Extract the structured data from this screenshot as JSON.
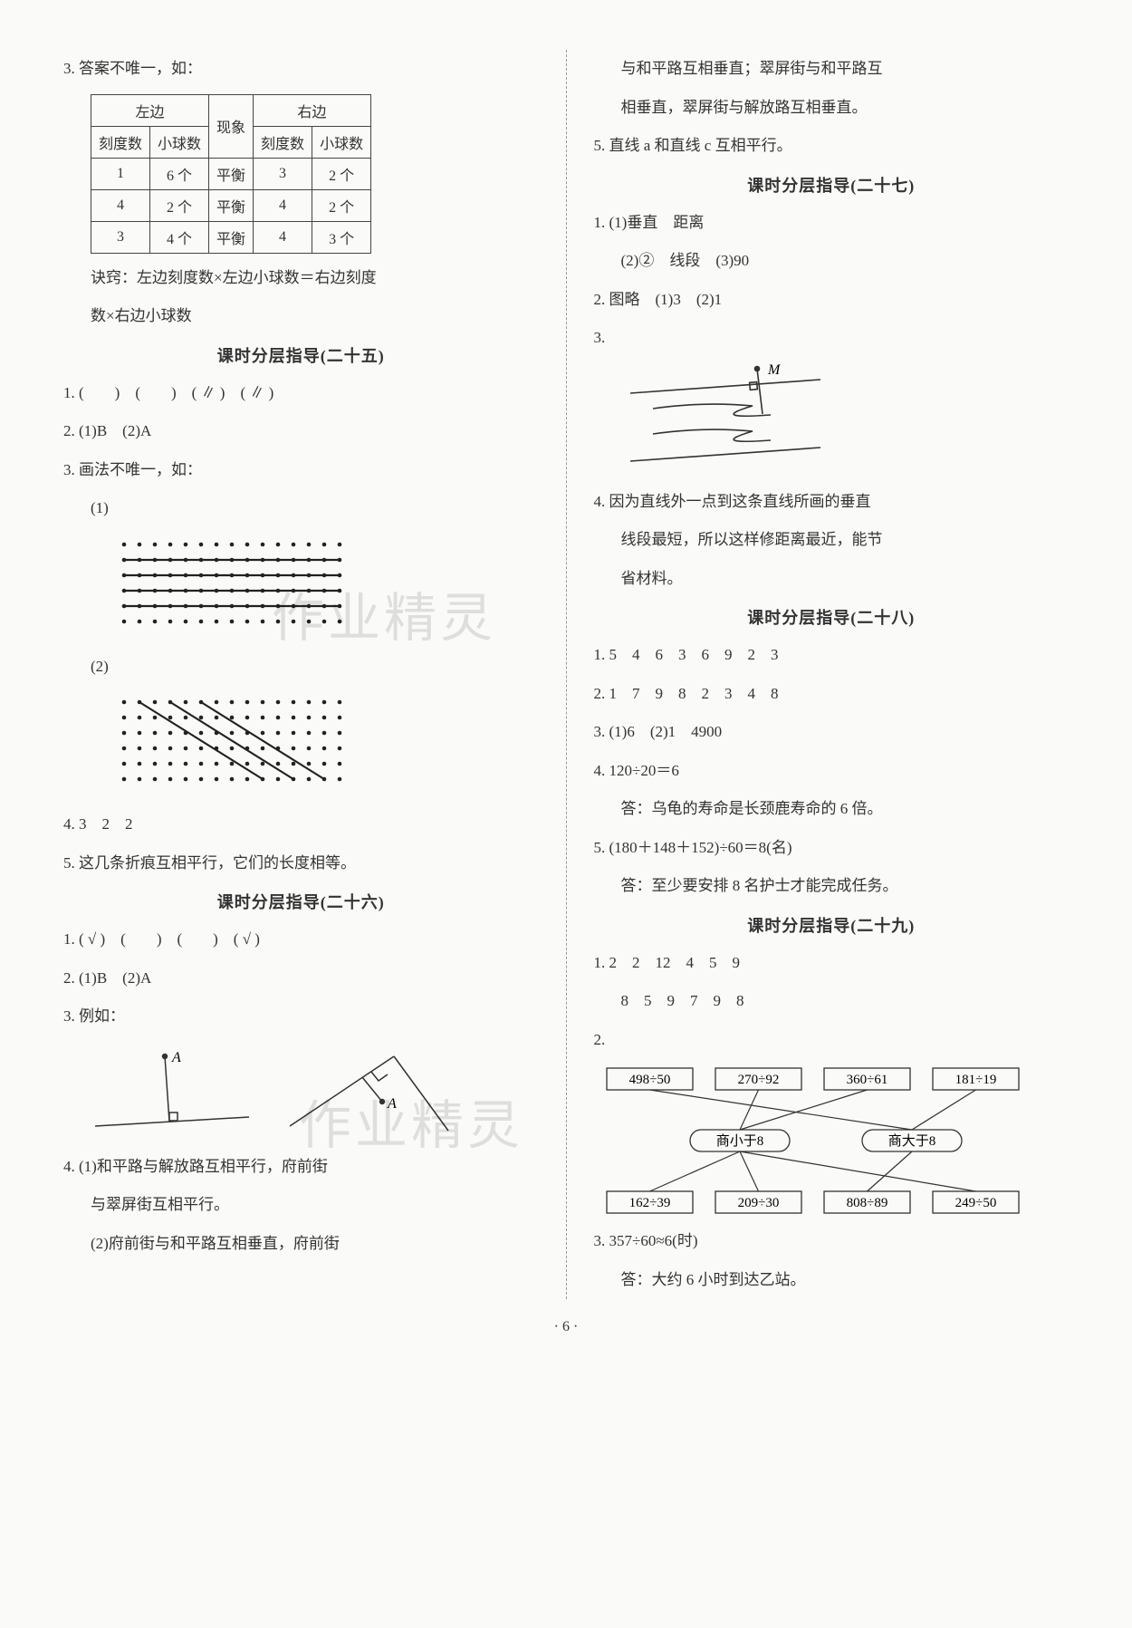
{
  "watermark": "作业精灵",
  "page_num": "6",
  "left": {
    "q3_intro": "3. 答案不唯一，如：",
    "table": {
      "head_left": "左边",
      "head_mid": "现象",
      "head_right": "右边",
      "sub_left1": "刻度数",
      "sub_left2": "小球数",
      "sub_right1": "刻度数",
      "sub_right2": "小球数",
      "rows": [
        {
          "a": "1",
          "b": "6 个",
          "c": "平衡",
          "d": "3",
          "e": "2 个"
        },
        {
          "a": "4",
          "b": "2 个",
          "c": "平衡",
          "d": "4",
          "e": "2 个"
        },
        {
          "a": "3",
          "b": "4 个",
          "c": "平衡",
          "d": "4",
          "e": "3 个"
        }
      ]
    },
    "q3_note1": "诀窍：左边刻度数×左边小球数＝右边刻度",
    "q3_note2": "数×右边小球数",
    "h25": "课时分层指导(二十五)",
    "s25_1": "1. (　　)　(　　)　( ∥ )　( ∥ )",
    "s25_2": "2. (1)B　(2)A",
    "s25_3": "3. 画法不唯一，如：",
    "s25_3_1": "(1)",
    "s25_3_2": "(2)",
    "s25_4": "4. 3　2　2",
    "s25_5": "5. 这几条折痕互相平行，它们的长度相等。",
    "h26": "课时分层指导(二十六)",
    "s26_1": "1. ( √ )　(　　)　(　　)　( √ )",
    "s26_2": "2. (1)B　(2)A",
    "s26_3": "3. 例如：",
    "s26_4a": "4. (1)和平路与解放路互相平行，府前街",
    "s26_4b": "与翠屏街互相平行。",
    "s26_4c": "(2)府前街与和平路互相垂直，府前街",
    "dots": {
      "cols": 15,
      "rows": 6,
      "step": 17,
      "dot_color": "#222",
      "line_color": "#222",
      "dot_r": 2.3
    }
  },
  "right": {
    "cont1": "与和平路互相垂直；翠屏街与和平路互",
    "cont2": "相垂直，翠屏街与解放路互相垂直。",
    "s26_5": "5. 直线 a 和直线 c 互相平行。",
    "h27": "课时分层指导(二十七)",
    "s27_1a": "1. (1)垂直　距离",
    "s27_1b": "(2)②　线段　(3)90",
    "s27_2": "2. 图略　(1)3　(2)1",
    "s27_3": "3.",
    "s27_3_label": "M",
    "s27_4a": "4. 因为直线外一点到这条直线所画的垂直",
    "s27_4b": "线段最短，所以这样修距离最近，能节",
    "s27_4c": "省材料。",
    "h28": "课时分层指导(二十八)",
    "s28_1": "1. 5　4　6　3　6　9　2　3",
    "s28_2": "2. 1　7　9　8　2　3　4　8",
    "s28_3": "3. (1)6　(2)1　4900",
    "s28_4a": "4. 120÷20＝6",
    "s28_4b": "答：乌龟的寿命是长颈鹿寿命的 6 倍。",
    "s28_5a": "5. (180＋148＋152)÷60＝8(名)",
    "s28_5b": "答：至少要安排 8 名护士才能完成任务。",
    "h29": "课时分层指导(二十九)",
    "s29_1a": "1. 2　2　12　4　5　9",
    "s29_1b": "8　5　9　7　9　8",
    "s29_2": "2.",
    "diagram29": {
      "top": [
        "498÷50",
        "270÷92",
        "360÷61",
        "181÷19"
      ],
      "mid": [
        "商小于8",
        "商大于8"
      ],
      "bot": [
        "162÷39",
        "209÷30",
        "808÷89",
        "249÷50"
      ],
      "box_stroke": "#333",
      "line_stroke": "#333",
      "font_size": 15,
      "map_top": [
        [
          0,
          1
        ],
        [
          1,
          0
        ],
        [
          2,
          0
        ],
        [
          3,
          1
        ]
      ],
      "map_bot": [
        [
          0,
          0
        ],
        [
          1,
          0
        ],
        [
          2,
          1
        ],
        [
          3,
          0
        ]
      ]
    },
    "s29_3a": "3. 357÷60≈6(时)",
    "s29_3b": "答：大约 6 小时到达乙站。"
  }
}
